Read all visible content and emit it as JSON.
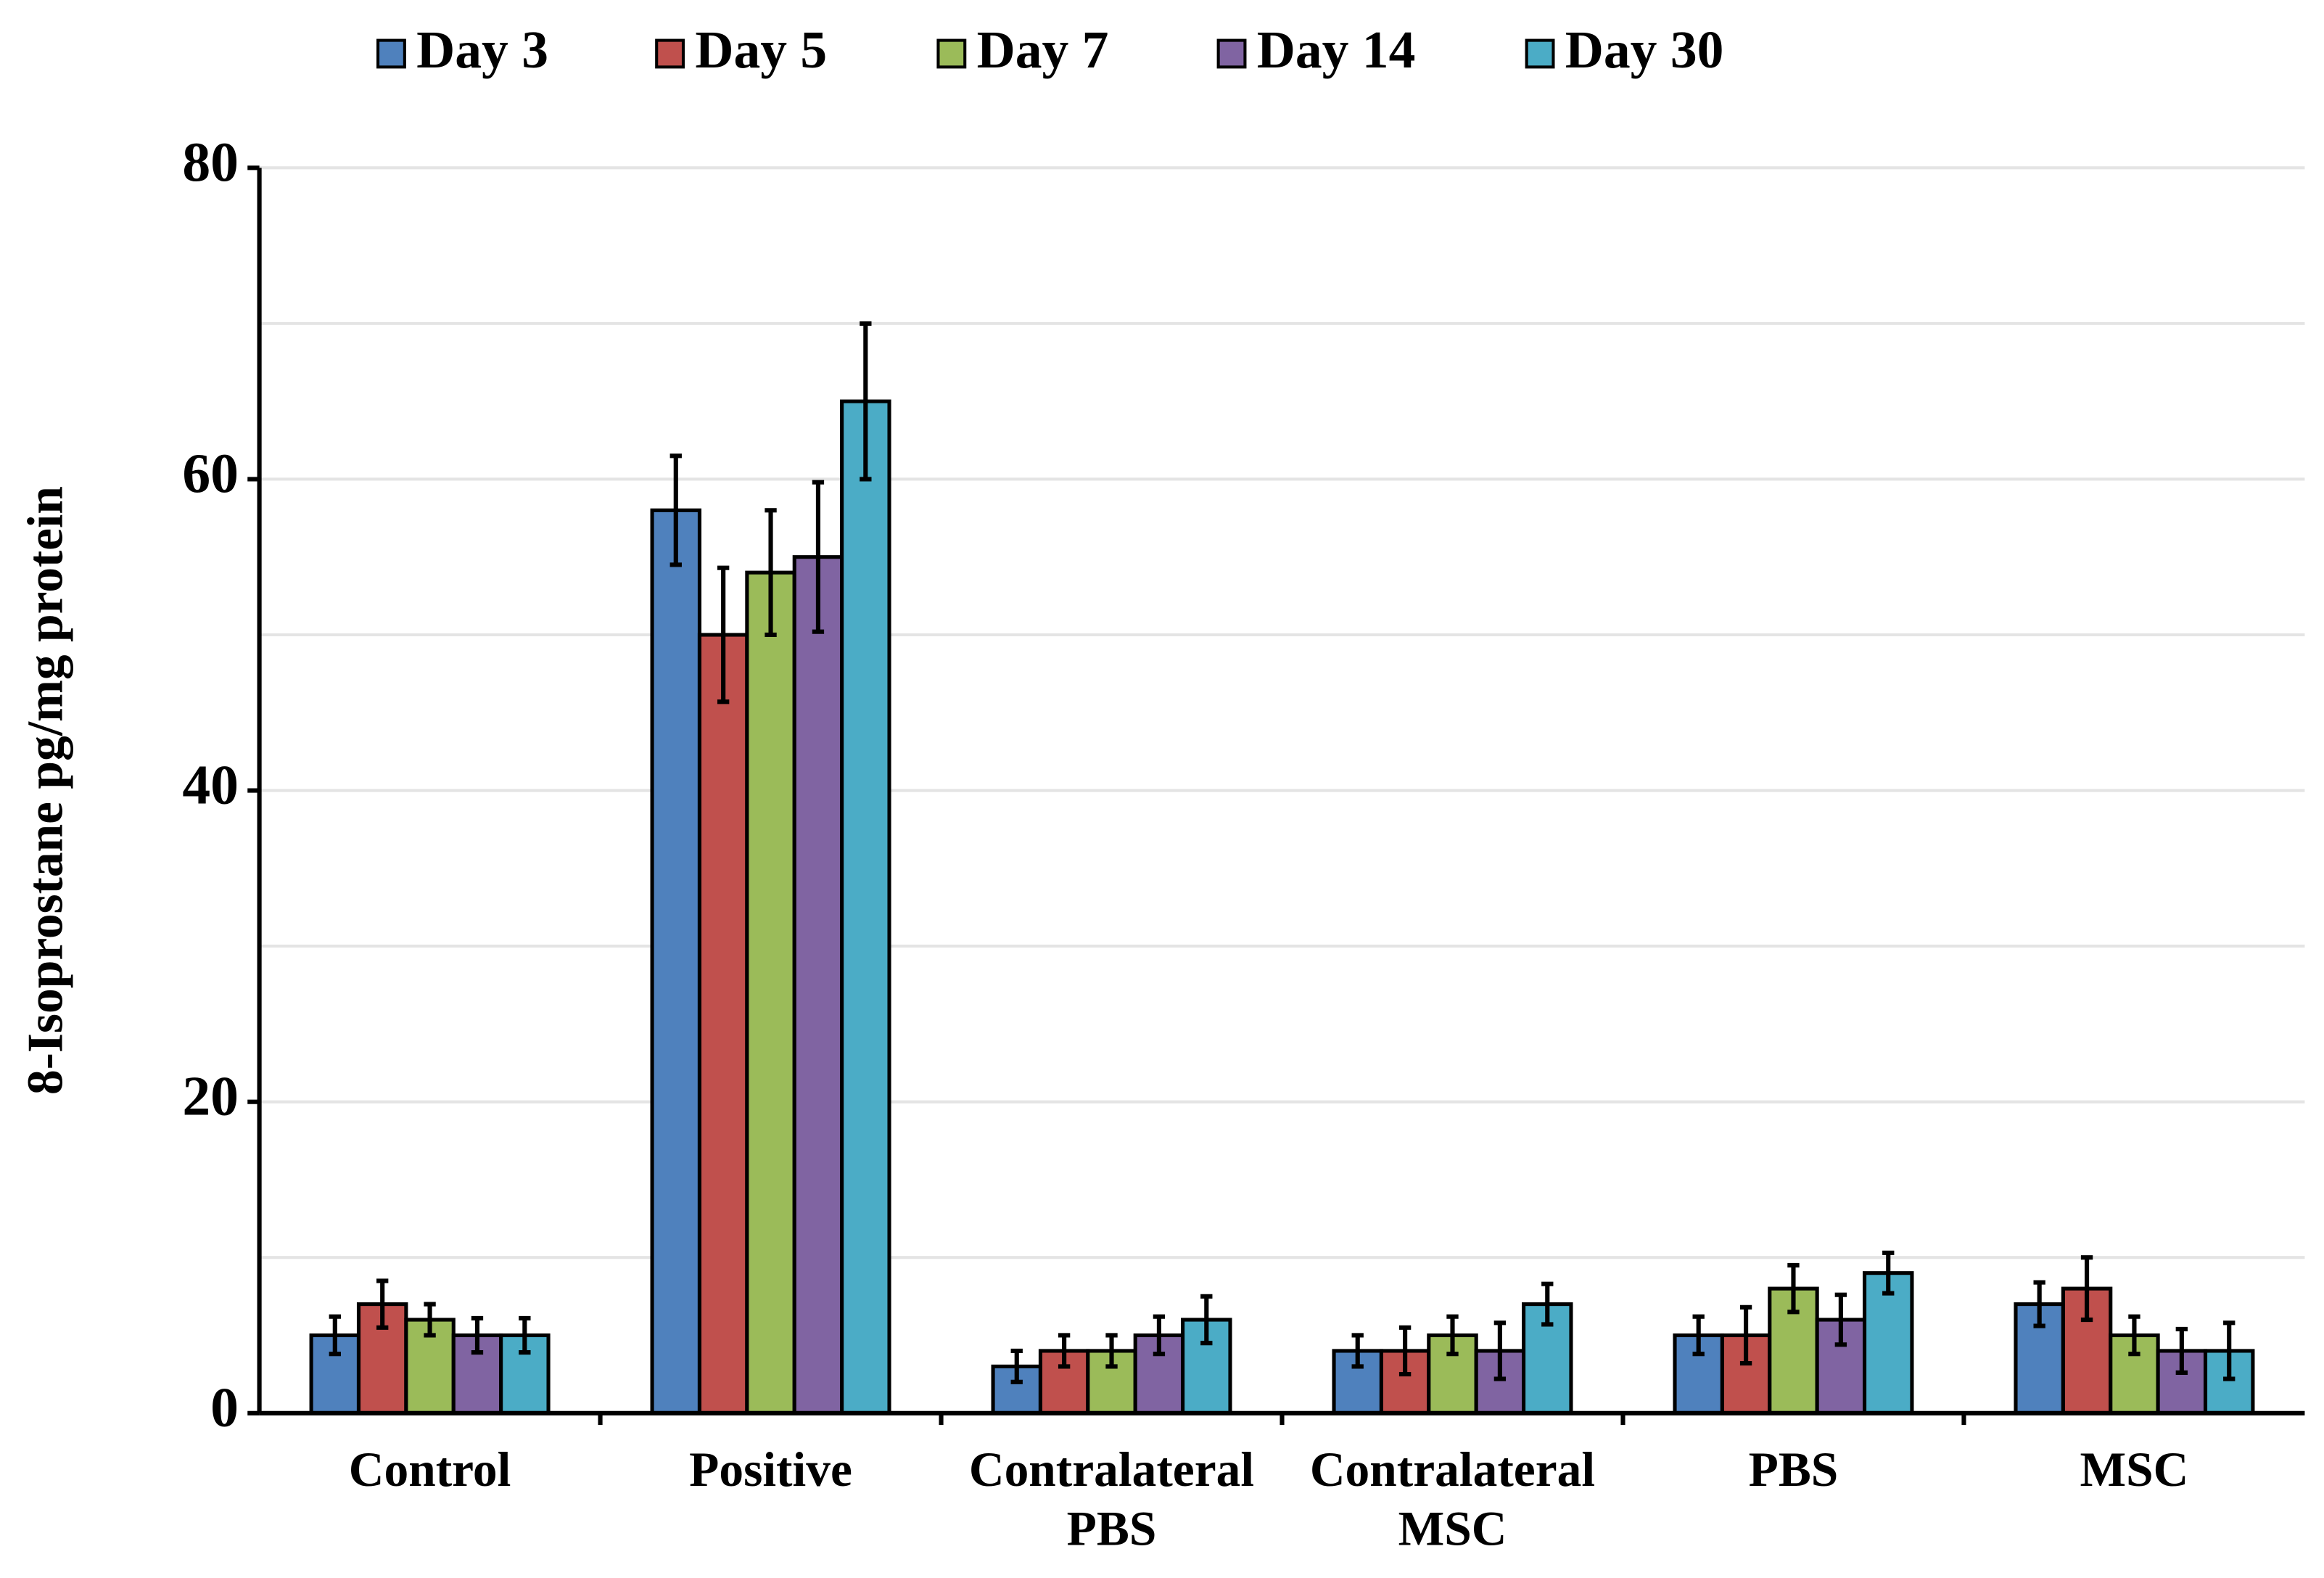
{
  "chart_data": {
    "type": "bar",
    "y_label": "8-Isoprostane pg/mg protein",
    "categories": [
      "Control",
      "Positive",
      "Contralateral PBS",
      "Contralateral MSC",
      "PBS",
      "MSC"
    ],
    "series": [
      {
        "name": "Day 3",
        "color": "#4f81bd",
        "values": [
          5,
          58,
          3,
          4,
          5,
          7
        ],
        "errors": [
          1.2,
          3.5,
          1,
          1,
          1.2,
          1.4
        ]
      },
      {
        "name": "Day 5",
        "color": "#c0504d",
        "values": [
          7,
          50,
          4,
          4,
          5,
          8
        ],
        "errors": [
          1.5,
          4.3,
          1,
          1.5,
          1.8,
          2
        ]
      },
      {
        "name": "Day 7",
        "color": "#9bbb59",
        "values": [
          6,
          54,
          4,
          5,
          8,
          5
        ],
        "errors": [
          1,
          4,
          1,
          1.2,
          1.5,
          1.2
        ]
      },
      {
        "name": "Day 14",
        "color": "#8064a2",
        "values": [
          5,
          55,
          5,
          4,
          6,
          4
        ],
        "errors": [
          1.1,
          4.8,
          1.2,
          1.8,
          1.6,
          1.4
        ]
      },
      {
        "name": "Day 30",
        "color": "#4bacc6",
        "values": [
          5,
          65,
          6,
          7,
          9,
          4
        ],
        "errors": [
          1.1,
          5,
          1.5,
          1.3,
          1.3,
          1.8
        ]
      }
    ],
    "ylim": [
      0,
      80
    ],
    "yticks": [
      0,
      20,
      40,
      60,
      80
    ],
    "minor_grid": [
      10,
      30,
      50,
      70
    ],
    "grid": true,
    "legend": "top"
  }
}
